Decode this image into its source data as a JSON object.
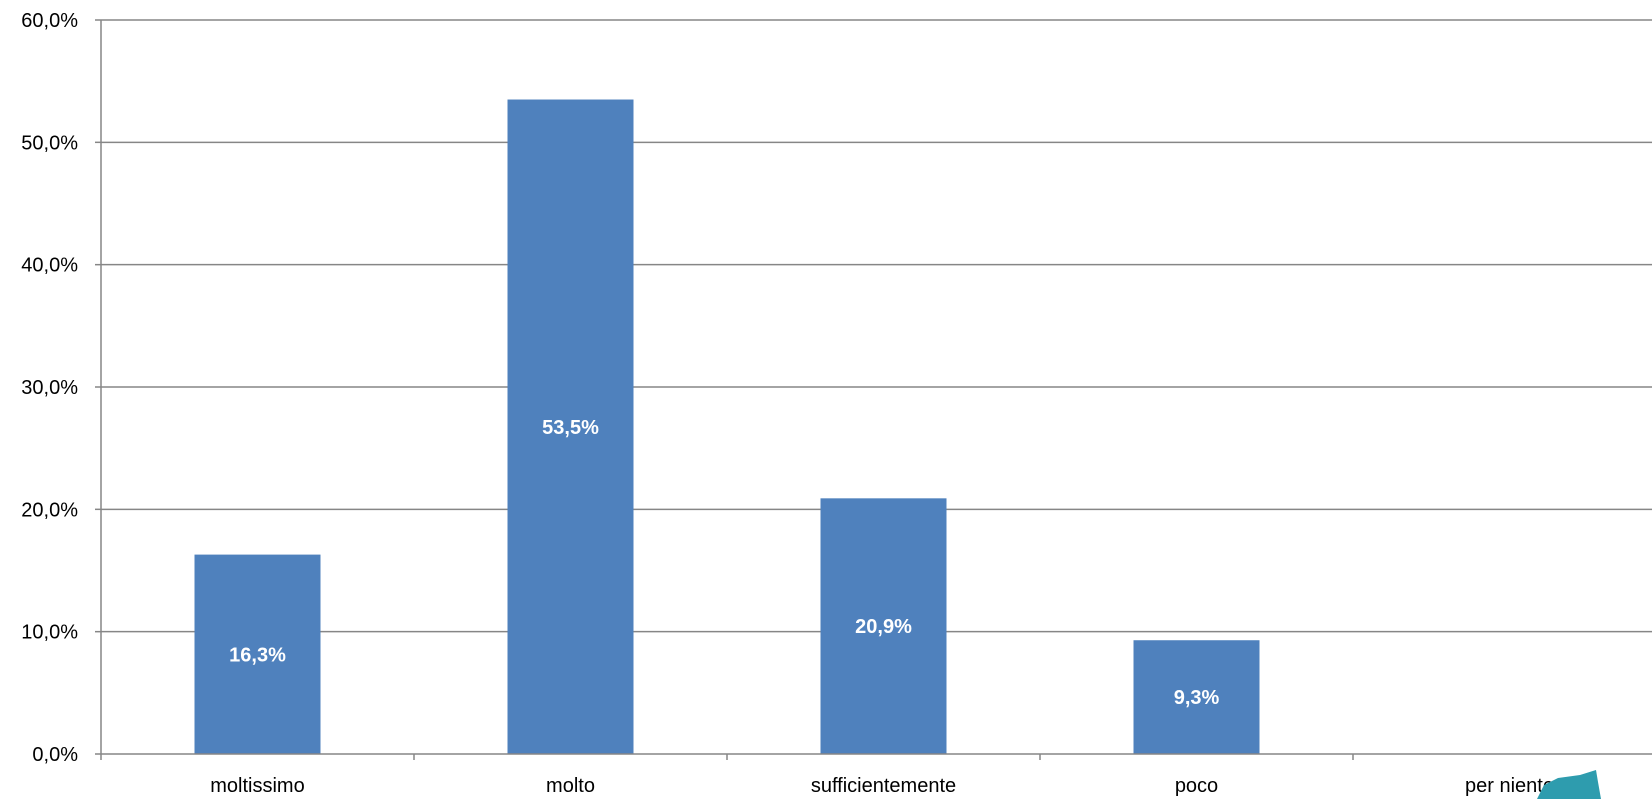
{
  "chart_data": {
    "type": "bar",
    "title": "",
    "xlabel": "",
    "ylabel": "",
    "categories": [
      "moltissimo",
      "molto",
      "sufficientemente",
      "poco",
      "per niente"
    ],
    "values": [
      16.3,
      53.5,
      20.9,
      9.3,
      0
    ],
    "data_labels": [
      "16,3%",
      "53,5%",
      "20,9%",
      "9,3%",
      ""
    ],
    "ylim": [
      0,
      60
    ],
    "yticks": [
      0,
      10,
      20,
      30,
      40,
      50,
      60
    ],
    "ytick_labels": [
      "0,0%",
      "10,0%",
      "20,0%",
      "30,0%",
      "40,0%",
      "50,0%",
      "60,0%"
    ],
    "grid": true,
    "legend": "none",
    "colors": {
      "bar": "#4f81bd",
      "grid": "#868686",
      "axis": "#868686",
      "data_label": "#ffffff",
      "corner_shape": "#2e9cae"
    }
  }
}
